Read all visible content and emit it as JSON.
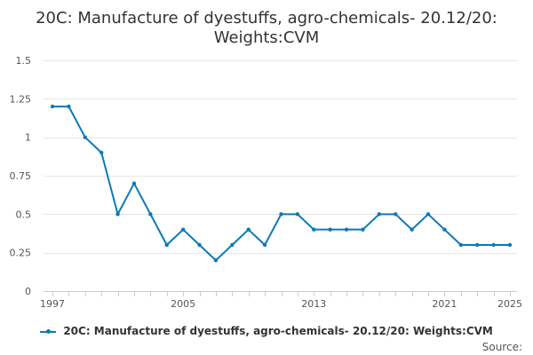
{
  "chart_data": {
    "type": "line",
    "title": "20C: Manufacture of dyestuffs, agro-chemicals- 20.12/20: Weights:CVM",
    "title_lines": [
      "20C: Manufacture of dyestuffs, agro-chemicals- 20.12/20:",
      "Weights:CVM"
    ],
    "xlabel": "",
    "ylabel": "",
    "x": [
      1997,
      1998,
      1999,
      2000,
      2001,
      2002,
      2003,
      2004,
      2005,
      2006,
      2007,
      2008,
      2009,
      2010,
      2011,
      2012,
      2013,
      2014,
      2015,
      2016,
      2017,
      2018,
      2019,
      2020,
      2021,
      2022,
      2023,
      2024,
      2025
    ],
    "x_tick_labels": [
      "1997",
      "2005",
      "2013",
      "2021",
      "2025"
    ],
    "ylim": [
      0,
      1.5
    ],
    "y_ticks": [
      "0",
      "0.25",
      "0.5",
      "0.75",
      "1",
      "1.25",
      "1.5"
    ],
    "series": [
      {
        "name": "20C: Manufacture of dyestuffs, agro-chemicals- 20.12/20: Weights:CVM",
        "color": "#0a7ab6",
        "values": [
          1.2,
          1.2,
          1.0,
          0.9,
          0.5,
          0.7,
          0.5,
          0.3,
          0.4,
          0.3,
          0.2,
          0.3,
          0.4,
          0.3,
          0.5,
          0.5,
          0.4,
          0.4,
          0.4,
          0.4,
          0.5,
          0.5,
          0.4,
          0.5,
          0.4,
          0.3,
          0.3,
          0.3,
          0.3
        ]
      }
    ],
    "grid": true,
    "legend_position": "bottom"
  },
  "source_label": "Source:"
}
